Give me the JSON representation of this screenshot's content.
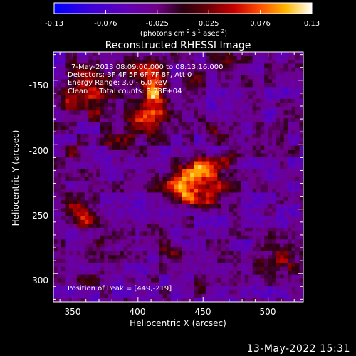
{
  "chart_data": {
    "type": "heatmap",
    "title": "Reconstructed RHESSI Image",
    "xlabel": "Heliocentric X (arcsec)",
    "ylabel": "Heliocentric Y (arcsec)",
    "xlim": [
      335,
      527
    ],
    "ylim": [
      -322,
      -128
    ],
    "xticks": [
      350,
      400,
      450,
      500
    ],
    "yticks": [
      -150,
      -200,
      -250,
      -300
    ],
    "colorbar": {
      "range": [
        -0.13,
        0.13
      ],
      "ticks": [
        "-0.13",
        "-0.076",
        "-0.025",
        "0.025",
        "0.076",
        "0.13"
      ],
      "unit_label": [
        "(photons cm",
        "-2",
        " s",
        "-1",
        " asec",
        "-2",
        ")"
      ]
    },
    "annotations": [
      "7-May-2013 08:09:00.000 to 08:13:16.000",
      "Detectors: 3F 4F 5F 6F 7F 8F, Att 0",
      "Energy Range: 3.0 - 6.0 keV",
      "Clean     Total counts: 3.73E+04"
    ],
    "peak_label": "Position of Peak = [449,-219]",
    "blobs": [
      {
        "x": 412,
        "y": -163,
        "amp": 0.13,
        "sx": 7,
        "sy": 14
      },
      {
        "x": 404,
        "y": -140,
        "amp": 0.07,
        "sx": 10,
        "sy": 6
      },
      {
        "x": 400,
        "y": -185,
        "amp": 0.07,
        "sx": 9,
        "sy": 8
      },
      {
        "x": 383,
        "y": -198,
        "amp": 0.06,
        "sx": 7,
        "sy": 6
      },
      {
        "x": 449,
        "y": -219,
        "amp": 0.13,
        "sx": 9,
        "sy": 6
      },
      {
        "x": 433,
        "y": -232,
        "amp": 0.13,
        "sx": 10,
        "sy": 8
      },
      {
        "x": 448,
        "y": -243,
        "amp": 0.09,
        "sx": 10,
        "sy": 5
      },
      {
        "x": 462,
        "y": -232,
        "amp": 0.06,
        "sx": 7,
        "sy": 6
      },
      {
        "x": 470,
        "y": -210,
        "amp": 0.05,
        "sx": 6,
        "sy": 5
      },
      {
        "x": 460,
        "y": -190,
        "amp": 0.04,
        "sx": 5,
        "sy": 5
      },
      {
        "x": 360,
        "y": -150,
        "amp": 0.08,
        "sx": 10,
        "sy": 10
      },
      {
        "x": 368,
        "y": -170,
        "amp": 0.07,
        "sx": 10,
        "sy": 8
      },
      {
        "x": 345,
        "y": -165,
        "amp": 0.05,
        "sx": 7,
        "sy": 10
      },
      {
        "x": 352,
        "y": -205,
        "amp": 0.05,
        "sx": 6,
        "sy": 5
      },
      {
        "x": 360,
        "y": -258,
        "amp": 0.07,
        "sx": 6,
        "sy": 6
      },
      {
        "x": 349,
        "y": -245,
        "amp": 0.06,
        "sx": 6,
        "sy": 8
      },
      {
        "x": 372,
        "y": -275,
        "amp": 0.04,
        "sx": 6,
        "sy": 5
      },
      {
        "x": 410,
        "y": -268,
        "amp": 0.05,
        "sx": 8,
        "sy": 5
      },
      {
        "x": 425,
        "y": -283,
        "amp": 0.04,
        "sx": 8,
        "sy": 4
      },
      {
        "x": 510,
        "y": -288,
        "amp": 0.06,
        "sx": 8,
        "sy": 8
      },
      {
        "x": 496,
        "y": -296,
        "amp": 0.05,
        "sx": 8,
        "sy": 6
      },
      {
        "x": 470,
        "y": -135,
        "amp": 0.05,
        "sx": 7,
        "sy": 5
      },
      {
        "x": 445,
        "y": -150,
        "amp": 0.04,
        "sx": 6,
        "sy": 5
      },
      {
        "x": 488,
        "y": -168,
        "amp": 0.03,
        "sx": 5,
        "sy": 6
      },
      {
        "x": 365,
        "y": -305,
        "amp": 0.03,
        "sx": 8,
        "sy": 6
      },
      {
        "x": 445,
        "y": -310,
        "amp": 0.03,
        "sx": 8,
        "sy": 5
      }
    ]
  },
  "footer": {
    "date": "13-May-2022 15:31"
  }
}
